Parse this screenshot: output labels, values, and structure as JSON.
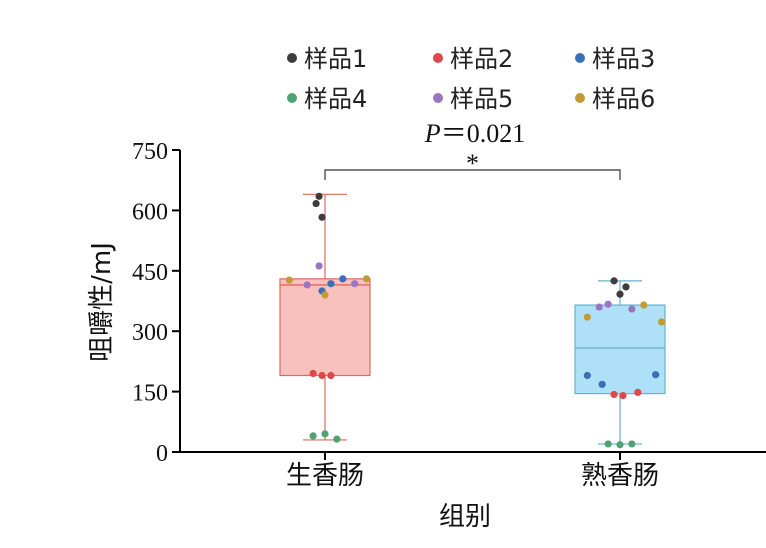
{
  "chart_data": {
    "type": "box",
    "xlabel": "组别",
    "ylabel": "咀嚼性/mJ",
    "ylim": [
      0,
      750
    ],
    "yticks": [
      0,
      150,
      300,
      450,
      600,
      750
    ],
    "categories": [
      "生香肠",
      "熟香肠"
    ],
    "legend": {
      "placement": "top",
      "entries": [
        {
          "name": "样品1",
          "color": "#3d3d3d"
        },
        {
          "name": "样品2",
          "color": "#e0474c"
        },
        {
          "name": "样品3",
          "color": "#3a6fb5"
        },
        {
          "name": "样品4",
          "color": "#4ea374"
        },
        {
          "name": "样品5",
          "color": "#9a76c2"
        },
        {
          "name": "样品6",
          "color": "#c39a35"
        }
      ]
    },
    "boxes": [
      {
        "category": "生香肠",
        "min": 30,
        "q1": 190,
        "median": 415,
        "q3": 430,
        "max": 640,
        "fill": "#f9c1bd",
        "stroke": "#e0695f"
      },
      {
        "category": "熟香肠",
        "min": 20,
        "q1": 145,
        "median": 258,
        "q3": 365,
        "max": 425,
        "fill": "#aee0f7",
        "stroke": "#6bb0cc"
      }
    ],
    "points": [
      {
        "category": "生香肠",
        "sample": 1,
        "offset": -0.1,
        "value": 635
      },
      {
        "category": "生香肠",
        "sample": 1,
        "offset": -0.15,
        "value": 617
      },
      {
        "category": "生香肠",
        "sample": 1,
        "offset": -0.05,
        "value": 583
      },
      {
        "category": "生香肠",
        "sample": 2,
        "offset": -0.2,
        "value": 195
      },
      {
        "category": "生香肠",
        "sample": 2,
        "offset": -0.05,
        "value": 190
      },
      {
        "category": "生香肠",
        "sample": 2,
        "offset": 0.1,
        "value": 190
      },
      {
        "category": "生香肠",
        "sample": 3,
        "offset": -0.05,
        "value": 400
      },
      {
        "category": "生香肠",
        "sample": 3,
        "offset": 0.1,
        "value": 418
      },
      {
        "category": "生香肠",
        "sample": 3,
        "offset": 0.3,
        "value": 430
      },
      {
        "category": "生香肠",
        "sample": 4,
        "offset": -0.2,
        "value": 40
      },
      {
        "category": "生香肠",
        "sample": 4,
        "offset": 0.0,
        "value": 45
      },
      {
        "category": "生香肠",
        "sample": 4,
        "offset": 0.2,
        "value": 32
      },
      {
        "category": "生香肠",
        "sample": 5,
        "offset": -0.3,
        "value": 415
      },
      {
        "category": "生香肠",
        "sample": 5,
        "offset": -0.1,
        "value": 462
      },
      {
        "category": "生香肠",
        "sample": 5,
        "offset": 0.5,
        "value": 418
      },
      {
        "category": "生香肠",
        "sample": 6,
        "offset": -0.6,
        "value": 427
      },
      {
        "category": "生香肠",
        "sample": 6,
        "offset": 0.0,
        "value": 390
      },
      {
        "category": "生香肠",
        "sample": 6,
        "offset": 0.7,
        "value": 430
      },
      {
        "category": "熟香肠",
        "sample": 1,
        "offset": -0.1,
        "value": 425
      },
      {
        "category": "熟香肠",
        "sample": 1,
        "offset": 0.0,
        "value": 392
      },
      {
        "category": "熟香肠",
        "sample": 1,
        "offset": 0.1,
        "value": 410
      },
      {
        "category": "熟香肠",
        "sample": 2,
        "offset": -0.1,
        "value": 143
      },
      {
        "category": "熟香肠",
        "sample": 2,
        "offset": 0.05,
        "value": 140
      },
      {
        "category": "熟香肠",
        "sample": 2,
        "offset": 0.3,
        "value": 148
      },
      {
        "category": "熟香肠",
        "sample": 3,
        "offset": -0.55,
        "value": 190
      },
      {
        "category": "熟香肠",
        "sample": 3,
        "offset": -0.3,
        "value": 168
      },
      {
        "category": "熟香肠",
        "sample": 3,
        "offset": 0.6,
        "value": 192
      },
      {
        "category": "熟香肠",
        "sample": 4,
        "offset": -0.2,
        "value": 20
      },
      {
        "category": "熟香肠",
        "sample": 4,
        "offset": 0.0,
        "value": 18
      },
      {
        "category": "熟香肠",
        "sample": 4,
        "offset": 0.2,
        "value": 20
      },
      {
        "category": "熟香肠",
        "sample": 5,
        "offset": -0.35,
        "value": 360
      },
      {
        "category": "熟香肠",
        "sample": 5,
        "offset": -0.2,
        "value": 367
      },
      {
        "category": "熟香肠",
        "sample": 5,
        "offset": 0.2,
        "value": 355
      },
      {
        "category": "熟香肠",
        "sample": 6,
        "offset": -0.55,
        "value": 335
      },
      {
        "category": "熟香肠",
        "sample": 6,
        "offset": 0.4,
        "value": 365
      },
      {
        "category": "熟香肠",
        "sample": 6,
        "offset": 0.7,
        "value": 323
      }
    ],
    "annotation": {
      "p_label": "P",
      "p_value": "＝0.021",
      "significance": "*",
      "between": [
        "生香肠",
        "熟香肠"
      ]
    }
  }
}
